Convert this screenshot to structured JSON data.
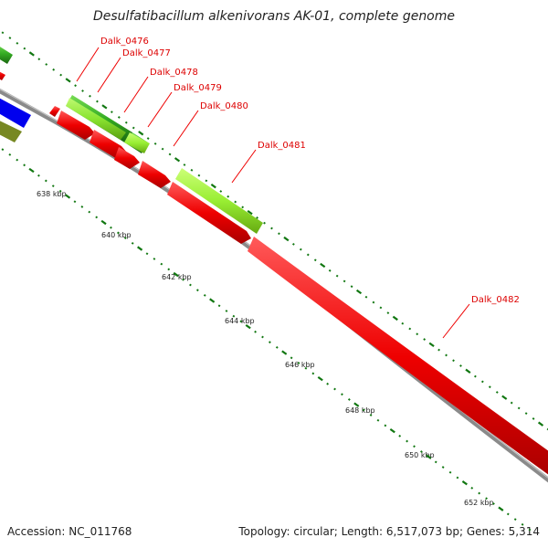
{
  "title": "Desulfatibacillum alkenivorans AK-01, complete genome",
  "footer": {
    "accession": "Accession: NC_011768",
    "topology": "Topology: circular; Length: 6,517,073 bp; Genes: 5,314"
  },
  "gene_labels": [
    "Dalk_0476",
    "Dalk_0477",
    "Dalk_0478",
    "Dalk_0479",
    "Dalk_0480",
    "Dalk_0481",
    "Dalk_0482"
  ],
  "tick_labels": [
    "638 kbp",
    "640 kbp",
    "642 kbp",
    "644 kbp",
    "646 kbp",
    "648 kbp",
    "650 kbp",
    "652 kbp"
  ],
  "colors": {
    "cds_forward": "#ee0000",
    "cds_light_green": "#99ee33",
    "cds_green": "#33aa22",
    "cds_blue": "#0000ee",
    "cds_olive": "#778822",
    "backbone": "#888888",
    "tick": "#117711",
    "label": "#dd0000"
  }
}
